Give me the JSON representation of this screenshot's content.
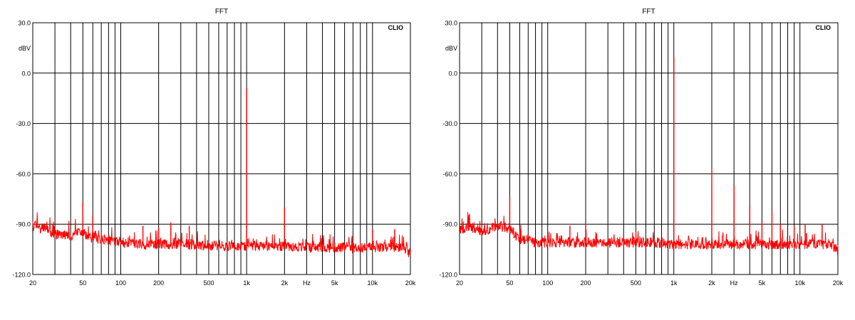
{
  "chart_data": [
    {
      "type": "line",
      "title": "FFT",
      "brand": "CLIO",
      "ylabel": "dBV",
      "x_scale": "log",
      "xlim": [
        20,
        20000
      ],
      "ylim": [
        -120,
        30
      ],
      "grid": true,
      "line_color": "#ff0000",
      "y_ticks": [
        {
          "value": 30,
          "label": "30.0"
        },
        {
          "value": 0,
          "label": "0.0"
        },
        {
          "value": -30,
          "label": "-30.0"
        },
        {
          "value": -60,
          "label": "-60.0"
        },
        {
          "value": -90,
          "label": "-90.0"
        },
        {
          "value": -120,
          "label": "-120.0"
        }
      ],
      "x_ticks": [
        {
          "value": 20,
          "label": "20"
        },
        {
          "value": 50,
          "label": "50"
        },
        {
          "value": 100,
          "label": "100"
        },
        {
          "value": 200,
          "label": "200"
        },
        {
          "value": 500,
          "label": "500"
        },
        {
          "value": 1000,
          "label": "1k"
        },
        {
          "value": 2000,
          "label": "2k"
        },
        {
          "value": 3000,
          "label": "Hz"
        },
        {
          "value": 5000,
          "label": "5k"
        },
        {
          "value": 10000,
          "label": "10k"
        },
        {
          "value": 20000,
          "label": "20k"
        }
      ],
      "noise_floor": [
        [
          20,
          -91
        ],
        [
          25,
          -93
        ],
        [
          30,
          -96
        ],
        [
          40,
          -97
        ],
        [
          50,
          -95
        ],
        [
          60,
          -99
        ],
        [
          80,
          -100
        ],
        [
          100,
          -101
        ],
        [
          150,
          -102
        ],
        [
          200,
          -102
        ],
        [
          300,
          -102
        ],
        [
          500,
          -103
        ],
        [
          700,
          -103
        ],
        [
          1000,
          -103
        ],
        [
          1500,
          -103
        ],
        [
          2000,
          -103
        ],
        [
          3000,
          -104
        ],
        [
          5000,
          -104
        ],
        [
          10000,
          -104
        ],
        [
          15000,
          -104
        ],
        [
          18000,
          -104
        ],
        [
          20000,
          -109
        ]
      ],
      "peaks": [
        [
          50,
          -77
        ],
        [
          60,
          -85
        ],
        [
          150,
          -91
        ],
        [
          200,
          -92
        ],
        [
          250,
          -89
        ],
        [
          350,
          -91
        ],
        [
          1000,
          -9
        ],
        [
          2000,
          -80
        ],
        [
          10000,
          -93
        ],
        [
          15000,
          -93
        ]
      ]
    },
    {
      "type": "line",
      "title": "FFT",
      "brand": "CLIO",
      "ylabel": "dBV",
      "x_scale": "log",
      "xlim": [
        20,
        20000
      ],
      "ylim": [
        -120,
        30
      ],
      "grid": true,
      "line_color": "#ff0000",
      "y_ticks": [
        {
          "value": 30,
          "label": "30.0"
        },
        {
          "value": 0,
          "label": "0.0"
        },
        {
          "value": -30,
          "label": "-30.0"
        },
        {
          "value": -60,
          "label": "-60.0"
        },
        {
          "value": -90,
          "label": "-90.0"
        },
        {
          "value": -120,
          "label": "-120.0"
        }
      ],
      "x_ticks": [
        {
          "value": 20,
          "label": "20"
        },
        {
          "value": 50,
          "label": "50"
        },
        {
          "value": 100,
          "label": "100"
        },
        {
          "value": 200,
          "label": "200"
        },
        {
          "value": 500,
          "label": "500"
        },
        {
          "value": 1000,
          "label": "1k"
        },
        {
          "value": 2000,
          "label": "2k"
        },
        {
          "value": 3000,
          "label": "Hz"
        },
        {
          "value": 5000,
          "label": "5k"
        },
        {
          "value": 10000,
          "label": "10k"
        },
        {
          "value": 20000,
          "label": "20k"
        }
      ],
      "noise_floor": [
        [
          20,
          -93
        ],
        [
          25,
          -92
        ],
        [
          30,
          -95
        ],
        [
          40,
          -91
        ],
        [
          50,
          -93
        ],
        [
          60,
          -99
        ],
        [
          80,
          -101
        ],
        [
          100,
          -101
        ],
        [
          150,
          -101
        ],
        [
          200,
          -101
        ],
        [
          300,
          -101
        ],
        [
          500,
          -101
        ],
        [
          700,
          -101
        ],
        [
          1000,
          -102
        ],
        [
          1500,
          -102
        ],
        [
          2000,
          -102
        ],
        [
          3000,
          -102
        ],
        [
          5000,
          -102
        ],
        [
          10000,
          -102
        ],
        [
          15000,
          -102
        ],
        [
          18000,
          -102
        ],
        [
          20000,
          -107
        ]
      ],
      "peaks": [
        [
          50,
          -74
        ],
        [
          150,
          -91
        ],
        [
          200,
          -89
        ],
        [
          1000,
          9.5
        ],
        [
          2000,
          -57
        ],
        [
          3000,
          -67
        ],
        [
          4000,
          -79
        ],
        [
          5000,
          -88
        ],
        [
          6000,
          -83
        ],
        [
          7000,
          -90
        ],
        [
          9000,
          -91
        ],
        [
          11000,
          -90
        ],
        [
          15000,
          -90
        ]
      ]
    }
  ]
}
